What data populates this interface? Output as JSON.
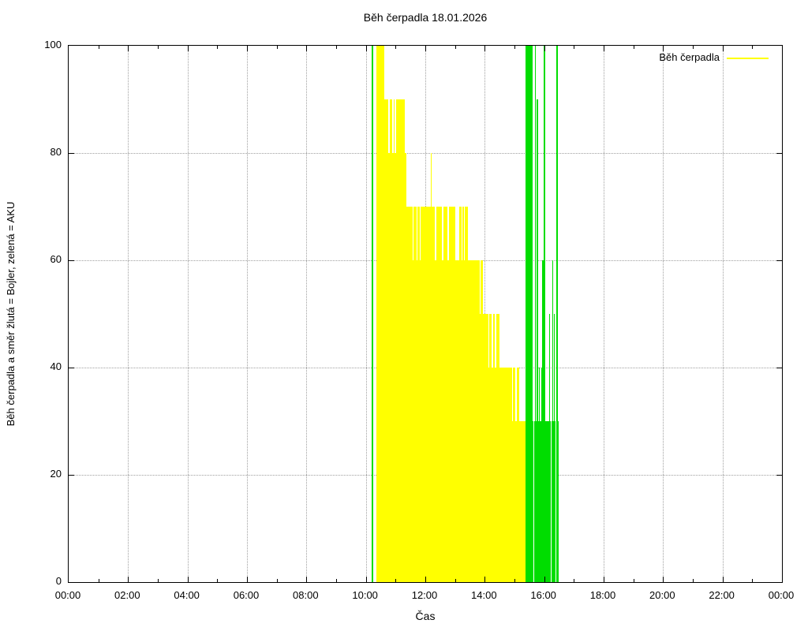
{
  "title": "Běh čerpadla 18.01.2026",
  "axes": {
    "x_label": "Čas",
    "y_label": "Běh čerpadla a směr žlutá = Bojler, zelená = AKU",
    "x_tick_labels": [
      "00:00",
      "02:00",
      "04:00",
      "06:00",
      "08:00",
      "10:00",
      "12:00",
      "14:00",
      "16:00",
      "18:00",
      "20:00",
      "22:00",
      "00:00"
    ],
    "y_tick_labels": [
      "0",
      "20",
      "40",
      "60",
      "80",
      "100"
    ],
    "x_range_hours": [
      0,
      24
    ],
    "y_range": [
      0,
      100
    ],
    "grid": "dotted"
  },
  "legend": {
    "label": "Běh čerpadla",
    "position": "top-right"
  },
  "colors": {
    "bojler": "#ffff00",
    "aku": "#00dd00",
    "off": "#ffffff",
    "grid": "#9f9f9f",
    "axis": "#000000"
  },
  "chart_data": {
    "type": "bar",
    "title": "Běh čerpadla 18.01.2026",
    "xlabel": "Čas",
    "ylabel": "Běh čerpadla a směr žlutá = Bojler, zelená = AKU",
    "xlim_hours": [
      0,
      24
    ],
    "ylim": [
      0,
      100
    ],
    "legend_position": "top-right",
    "grid": "dotted",
    "series_legend": [
      {
        "name": "Běh čerpadla",
        "color_key": "bojler"
      }
    ],
    "layers": [
      {
        "color_key": "bojler",
        "role": "pump-run-to-boiler-steps",
        "bars": [
          {
            "t0": 10.36,
            "t1": 10.62,
            "v": 100
          },
          {
            "t0": 10.62,
            "t1": 11.31,
            "v": 90
          },
          {
            "t0": 11.31,
            "t1": 11.36,
            "v": 80
          },
          {
            "t0": 11.36,
            "t1": 13.01,
            "v": 70
          },
          {
            "t0": 12.18,
            "t1": 12.22,
            "v": 80
          },
          {
            "t0": 13.01,
            "t1": 13.14,
            "v": 60
          },
          {
            "t0": 13.14,
            "t1": 13.43,
            "v": 70
          },
          {
            "t0": 13.43,
            "t1": 13.93,
            "v": 60
          },
          {
            "t0": 13.93,
            "t1": 14.49,
            "v": 50
          },
          {
            "t0": 14.49,
            "t1": 15.15,
            "v": 40
          },
          {
            "t0": 15.15,
            "t1": 15.39,
            "v": 30
          }
        ]
      },
      {
        "color_key": "off",
        "role": "short-off-gaps",
        "bars": [
          {
            "t": 10.77,
            "w": 2,
            "vt": 90,
            "vb": 80
          },
          {
            "t": 10.91,
            "w": 2,
            "vt": 90,
            "vb": 80
          },
          {
            "t": 10.99,
            "w": 2,
            "vt": 90,
            "vb": 80
          },
          {
            "t": 11.59,
            "w": 1,
            "vt": 70,
            "vb": 60
          },
          {
            "t": 11.71,
            "w": 1,
            "vt": 70,
            "vb": 60
          },
          {
            "t": 11.84,
            "w": 1,
            "vt": 70,
            "vb": 60
          },
          {
            "t": 12.34,
            "w": 2,
            "vt": 70,
            "vb": 60
          },
          {
            "t": 12.58,
            "w": 2,
            "vt": 70,
            "vb": 60
          },
          {
            "t": 12.78,
            "w": 2,
            "vt": 70,
            "vb": 60
          },
          {
            "t": 13.23,
            "w": 1,
            "vt": 70,
            "vb": 60
          },
          {
            "t": 13.31,
            "w": 1,
            "vt": 70,
            "vb": 60
          },
          {
            "t": 13.85,
            "w": 1,
            "vt": 60,
            "vb": 50
          },
          {
            "t": 14.15,
            "w": 1,
            "vt": 50,
            "vb": 40
          },
          {
            "t": 14.25,
            "w": 2,
            "vt": 50,
            "vb": 40
          },
          {
            "t": 14.36,
            "w": 2,
            "vt": 50,
            "vb": 40
          },
          {
            "t": 14.94,
            "w": 1,
            "vt": 40,
            "vb": 30
          },
          {
            "t": 15.05,
            "w": 2,
            "vt": 40,
            "vb": 30
          }
        ]
      },
      {
        "color_key": "aku",
        "role": "pump-run-to-aku-base",
        "bars": [
          {
            "t0": 15.6,
            "t1": 16.48,
            "v": 30
          }
        ]
      },
      {
        "color_key": "off",
        "role": "short-off-gaps-aku",
        "bars": [
          {
            "t": 15.66,
            "w": 1,
            "vt": 30,
            "vb": 0
          },
          {
            "t": 15.975,
            "w": 1,
            "vt": 30,
            "vb": 0
          },
          {
            "t": 16.24,
            "w": 1,
            "vt": 30,
            "vb": 0
          },
          {
            "t": 16.39,
            "w": 1,
            "vt": 30,
            "vb": 0
          }
        ]
      },
      {
        "color_key": "aku",
        "role": "pump-run-to-aku-spikes",
        "bars": [
          {
            "t0": 10.19,
            "t1": 10.24,
            "v": 100
          },
          {
            "t0": 15.36,
            "t1": 15.6,
            "v": 100
          },
          {
            "t0": 15.68,
            "t1": 15.72,
            "v": 100
          },
          {
            "t0": 15.75,
            "t1": 15.79,
            "v": 90
          },
          {
            "t0": 15.83,
            "t1": 15.85,
            "v": 40
          },
          {
            "t0": 15.89,
            "t1": 15.92,
            "v": 40
          },
          {
            "t0": 15.93,
            "t1": 15.97,
            "v": 60
          },
          {
            "t0": 15.99,
            "t1": 16.03,
            "v": 100
          },
          {
            "t0": 16.17,
            "t1": 16.2,
            "v": 50
          },
          {
            "t0": 16.27,
            "t1": 16.31,
            "v": 60
          },
          {
            "t0": 16.33,
            "t1": 16.36,
            "v": 50
          },
          {
            "t0": 16.41,
            "t1": 16.46,
            "v": 100
          }
        ]
      }
    ]
  }
}
